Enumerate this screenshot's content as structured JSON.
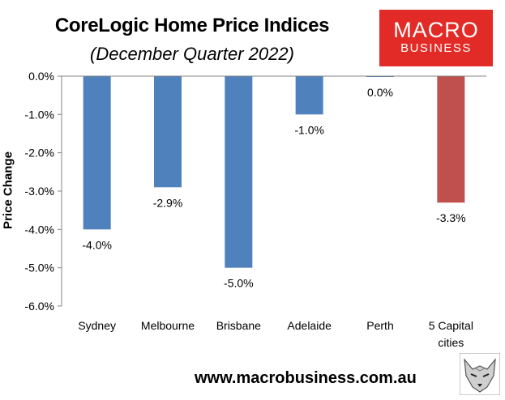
{
  "title": "CoreLogic Home Price Indices",
  "subtitle": "(December Quarter 2022)",
  "logo": {
    "line1": "MACRO",
    "line2": "BUSINESS"
  },
  "footer": "www.macrobusiness.com.au",
  "colors": {
    "bar": "#4f81bd",
    "highlight": "#c0504d",
    "logo_bg": "#e22b26"
  },
  "chart_data": {
    "type": "bar",
    "title": "CoreLogic Home Price Indices",
    "subtitle": "(December Quarter 2022)",
    "xlabel": "",
    "ylabel": "Price Change",
    "categories": [
      "Sydney",
      "Melbourne",
      "Brisbane",
      "Adelaide",
      "Perth",
      "5 Capital cities"
    ],
    "category_lines": [
      [
        "Sydney"
      ],
      [
        "Melbourne"
      ],
      [
        "Brisbane"
      ],
      [
        "Adelaide"
      ],
      [
        "Perth"
      ],
      [
        "5 Capital",
        "cities"
      ]
    ],
    "values": [
      -4.0,
      -2.9,
      -5.0,
      -1.0,
      -0.02,
      -3.3
    ],
    "data_labels": [
      "-4.0%",
      "-2.9%",
      "-5.0%",
      "-1.0%",
      "0.0%",
      "-3.3%"
    ],
    "highlight_index": 5,
    "ylim": [
      -6,
      0
    ],
    "yticks": [
      0,
      -1,
      -2,
      -3,
      -4,
      -5,
      -6
    ],
    "ytick_labels": [
      "0.0%",
      "-1.0%",
      "-2.0%",
      "-3.0%",
      "-4.0%",
      "-5.0%",
      "-6.0%"
    ],
    "grid": false,
    "legend": "none"
  }
}
